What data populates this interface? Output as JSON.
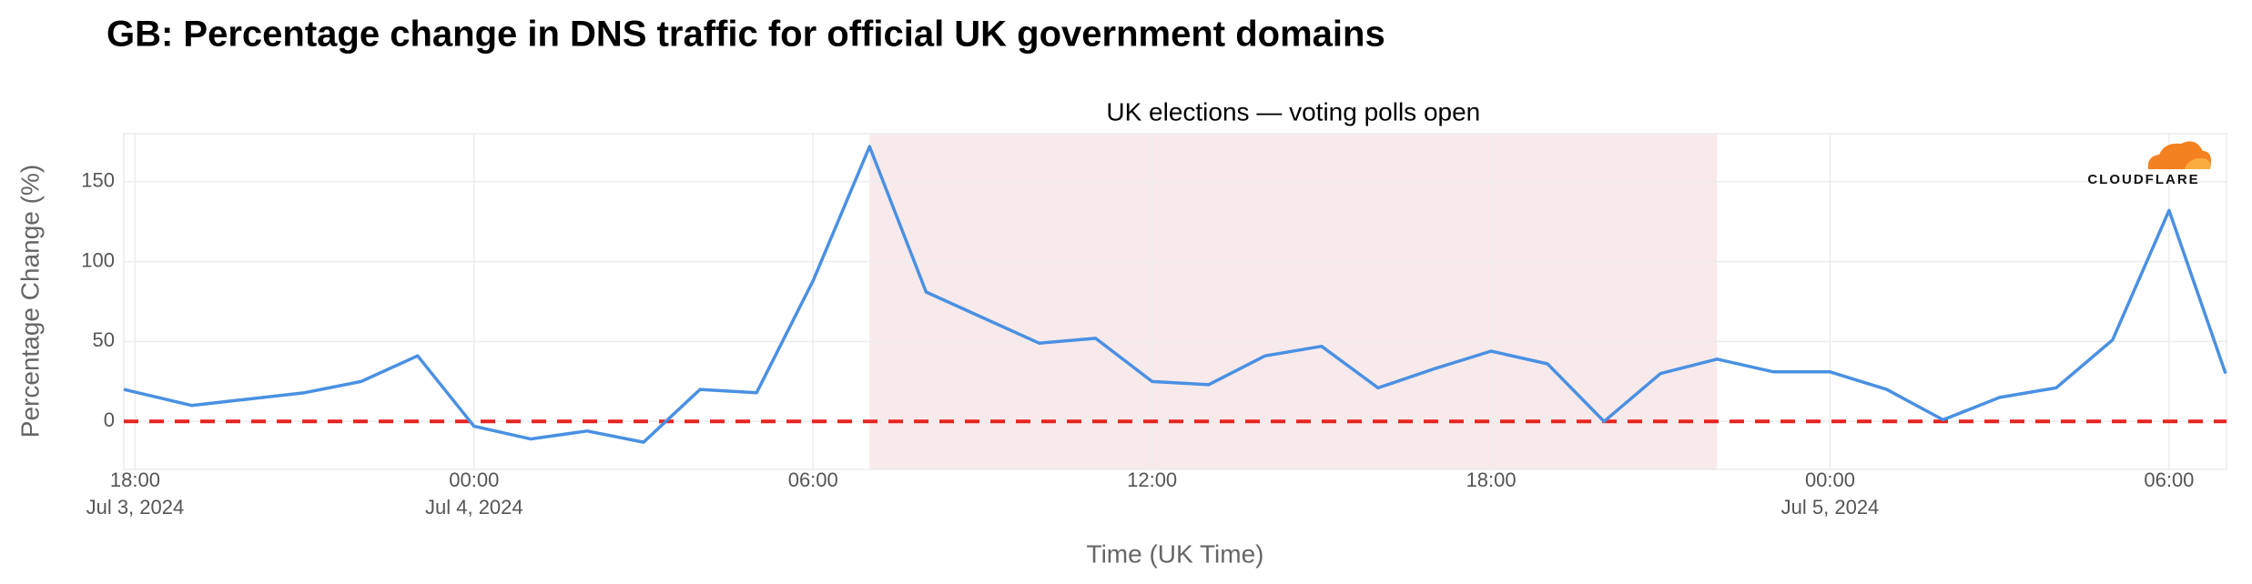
{
  "chart_data": {
    "type": "line",
    "title": "GB: Percentage change in DNS traffic for official UK government domains",
    "x_label": "Time (UK Time)",
    "y_label": "Percentage Change (%)",
    "logo": "CLOUDFLARE",
    "color": "#4a90e2",
    "x": [
      "2024-07-03T17:48",
      "2024-07-03T19:00",
      "2024-07-03T20:00",
      "2024-07-03T21:00",
      "2024-07-03T22:00",
      "2024-07-03T23:00",
      "2024-07-04T00:00",
      "2024-07-04T01:00",
      "2024-07-04T02:00",
      "2024-07-04T03:00",
      "2024-07-04T04:00",
      "2024-07-04T05:00",
      "2024-07-04T06:00",
      "2024-07-04T07:00",
      "2024-07-04T08:00",
      "2024-07-04T09:00",
      "2024-07-04T10:00",
      "2024-07-04T11:00",
      "2024-07-04T12:00",
      "2024-07-04T13:00",
      "2024-07-04T14:00",
      "2024-07-04T15:00",
      "2024-07-04T16:00",
      "2024-07-04T17:00",
      "2024-07-04T18:00",
      "2024-07-04T19:00",
      "2024-07-04T20:00",
      "2024-07-04T21:00",
      "2024-07-04T22:00",
      "2024-07-04T23:00",
      "2024-07-05T00:00",
      "2024-07-05T01:00",
      "2024-07-05T02:00",
      "2024-07-05T03:00",
      "2024-07-05T04:00",
      "2024-07-05T05:00",
      "2024-07-05T06:00",
      "2024-07-05T07:00"
    ],
    "values": [
      20,
      10,
      14,
      18,
      25,
      41,
      -3,
      -11,
      -6,
      -13,
      20,
      18,
      88,
      172,
      81,
      65,
      49,
      52,
      25,
      23,
      41,
      47,
      21,
      33,
      44,
      36,
      0,
      30,
      39,
      31,
      31,
      20,
      1,
      15,
      21,
      51,
      132,
      30
    ],
    "xlim": [
      "2024-07-03T17:48",
      "2024-07-05T07:01"
    ],
    "xticks": [
      {
        "value": "2024-07-03T18:00",
        "label": "18:00"
      },
      {
        "value": "2024-07-04T00:00",
        "label": "00:00"
      },
      {
        "value": "2024-07-04T06:00",
        "label": "06:00"
      },
      {
        "value": "2024-07-04T12:00",
        "label": "12:00"
      },
      {
        "value": "2024-07-04T18:00",
        "label": "18:00"
      },
      {
        "value": "2024-07-05T00:00",
        "label": "00:00"
      },
      {
        "value": "2024-07-05T06:00",
        "label": "06:00"
      }
    ],
    "xtick_dates": [
      {
        "value": "2024-07-03T18:00",
        "label": "Jul 3, 2024"
      },
      {
        "value": "2024-07-04T00:00",
        "label": "Jul 4, 2024"
      },
      {
        "value": "2024-07-05T00:00",
        "label": "Jul 5, 2024"
      }
    ],
    "ylim": [
      -30,
      180
    ],
    "yticks": [
      0,
      50,
      100,
      150
    ],
    "grid": true,
    "reference_line": {
      "value": 0,
      "color": "#e8231f"
    },
    "shaded_region": {
      "start": "2024-07-04T07:00",
      "end": "2024-07-04T22:00",
      "color": "#f8eaeb",
      "label": "UK elections — voting polls open"
    }
  }
}
